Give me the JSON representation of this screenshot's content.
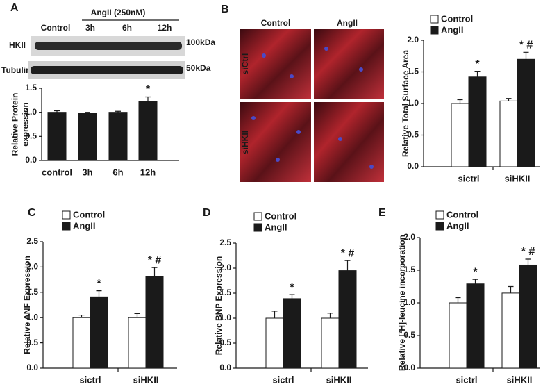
{
  "blot": {
    "header": "AngII (250nM)",
    "lanes": [
      "Control",
      "3h",
      "6h",
      "12h"
    ],
    "rows": [
      "HKII",
      "Tubulin"
    ],
    "sizes": [
      "100kDa",
      "50kDa"
    ]
  },
  "micrograph": {
    "columns": [
      "Control",
      "AngII"
    ],
    "rows": [
      "siCtrl",
      "siHKII"
    ]
  },
  "chart_data": [
    {
      "type": "bar",
      "panel": "A",
      "ylabel": [
        "Relative Protein",
        "expression"
      ],
      "categories": [
        "control",
        "3h",
        "6h",
        "12h"
      ],
      "series": [
        {
          "color": "#1a1a1a",
          "values": [
            1.0,
            0.98,
            1.0,
            1.23
          ],
          "errors": [
            0.03,
            0.02,
            0.02,
            0.09
          ],
          "annotations": [
            null,
            null,
            null,
            "*"
          ]
        }
      ],
      "ylim": [
        0,
        1.5
      ],
      "yticks": [
        {
          "value": 0,
          "label": "0.0"
        },
        0.5,
        {
          "value": 1,
          "label": "1.0"
        },
        1.5
      ]
    },
    {
      "type": "bar",
      "panel": "B",
      "ylabel": [
        "Relative Total Surface Area"
      ],
      "categories": [
        "sictrl",
        "siHKII"
      ],
      "series": [
        {
          "name": "Control",
          "color": "#ffffff",
          "values": [
            1.0,
            1.04
          ],
          "errors": [
            0.06,
            0.04
          ],
          "annotations": [
            null,
            null
          ]
        },
        {
          "name": "AngII",
          "color": "#1a1a1a",
          "values": [
            1.42,
            1.7
          ],
          "errors": [
            0.09,
            0.11
          ],
          "annotations": [
            "*",
            "* #"
          ]
        }
      ],
      "ylim": [
        0,
        2.0
      ],
      "yticks": [
        {
          "value": 0,
          "label": "0.0"
        },
        0.5,
        {
          "value": 1,
          "label": "1.0"
        },
        1.5,
        {
          "value": 2,
          "label": "2.0"
        }
      ]
    },
    {
      "type": "bar",
      "panel": "C",
      "ylabel": [
        "Relative ANF Expression"
      ],
      "categories": [
        "sictrl",
        "siHKII"
      ],
      "series": [
        {
          "name": "Control",
          "color": "#ffffff",
          "values": [
            1.0,
            1.0
          ],
          "errors": [
            0.05,
            0.08
          ],
          "annotations": [
            null,
            null
          ]
        },
        {
          "name": "AngII",
          "color": "#1a1a1a",
          "values": [
            1.41,
            1.82
          ],
          "errors": [
            0.12,
            0.17
          ],
          "annotations": [
            "*",
            "* #"
          ]
        }
      ],
      "ylim": [
        0,
        2.5
      ],
      "yticks": [
        {
          "value": 0,
          "label": "0.0"
        },
        0.5,
        {
          "value": 1,
          "label": "1.0"
        },
        1.5,
        {
          "value": 2,
          "label": "2.0"
        },
        2.5
      ]
    },
    {
      "type": "bar",
      "panel": "D",
      "ylabel": [
        "Relative BNP Expression"
      ],
      "categories": [
        "sictrl",
        "siHKII"
      ],
      "series": [
        {
          "name": "Control",
          "color": "#ffffff",
          "values": [
            1.0,
            1.0
          ],
          "errors": [
            0.14,
            0.1
          ],
          "annotations": [
            null,
            null
          ]
        },
        {
          "name": "AngII",
          "color": "#1a1a1a",
          "values": [
            1.39,
            1.95
          ],
          "errors": [
            0.08,
            0.2
          ],
          "annotations": [
            "*",
            "* #"
          ]
        }
      ],
      "ylim": [
        0,
        2.5
      ],
      "yticks": [
        {
          "value": 0,
          "label": "0.0"
        },
        0.5,
        {
          "value": 1,
          "label": "1.0"
        },
        1.5,
        {
          "value": 2,
          "label": "2.0"
        },
        2.5
      ]
    },
    {
      "type": "bar",
      "panel": "E",
      "ylabel": [
        "Relative [³H]-leucine incorporation"
      ],
      "categories": [
        "sictrl",
        "siHKII"
      ],
      "series": [
        {
          "name": "Control",
          "color": "#ffffff",
          "values": [
            1.0,
            1.15
          ],
          "errors": [
            0.08,
            0.1
          ],
          "annotations": [
            null,
            null
          ]
        },
        {
          "name": "AngII",
          "color": "#1a1a1a",
          "values": [
            1.29,
            1.58
          ],
          "errors": [
            0.07,
            0.09
          ],
          "annotations": [
            "*",
            "* #"
          ]
        }
      ],
      "ylim": [
        0,
        2.0
      ],
      "yticks": [
        {
          "value": 0,
          "label": "0.0"
        },
        0.5,
        {
          "value": 1,
          "label": "1.0"
        },
        1.5,
        {
          "value": 2,
          "label": "2.0"
        }
      ]
    }
  ]
}
